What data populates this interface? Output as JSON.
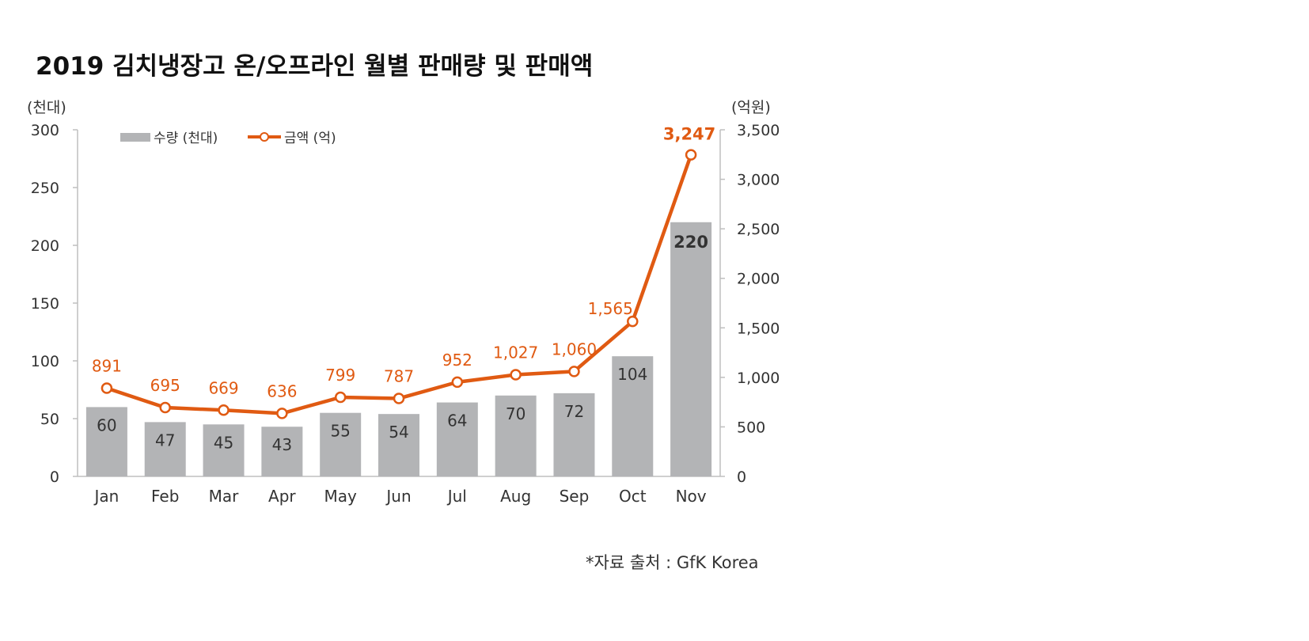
{
  "chart_data": {
    "type": "bar",
    "title": "2019 김치냉장고 온/오프라인 월별 판매량 및 판매액",
    "categories": [
      "Jan",
      "Feb",
      "Mar",
      "Apr",
      "May",
      "Jun",
      "Jul",
      "Aug",
      "Sep",
      "Oct",
      "Nov"
    ],
    "y_left_unit": "(천대)",
    "y_right_unit": "(억원)",
    "ylim_left": [
      0,
      300
    ],
    "ylim_right": [
      0,
      3500
    ],
    "y_left_ticks": [
      "0",
      "50",
      "100",
      "150",
      "200",
      "250",
      "300"
    ],
    "y_right_ticks": [
      "0",
      "500",
      "1,000",
      "1,500",
      "2,000",
      "2,500",
      "3,000",
      "3,500"
    ],
    "grid": false,
    "legend_position": "top-left",
    "series": [
      {
        "name": "수량 (천대)",
        "type": "bar",
        "axis": "left",
        "color": "#b3b4b6",
        "values": [
          60,
          47,
          45,
          43,
          55,
          54,
          64,
          70,
          72,
          104,
          220
        ],
        "labels": [
          "60",
          "47",
          "45",
          "43",
          "55",
          "54",
          "64",
          "70",
          "72",
          "104",
          "220"
        ]
      },
      {
        "name": "금액 (억)",
        "type": "line",
        "axis": "right",
        "color": "#e05a12",
        "values": [
          891,
          695,
          669,
          636,
          799,
          787,
          952,
          1027,
          1060,
          1565,
          3247
        ],
        "labels": [
          "891",
          "695",
          "669",
          "636",
          "799",
          "787",
          "952",
          "1,027",
          "1,060",
          "1,565",
          "3,247"
        ]
      }
    ],
    "source": "*자료 출처 : GfK Korea"
  }
}
